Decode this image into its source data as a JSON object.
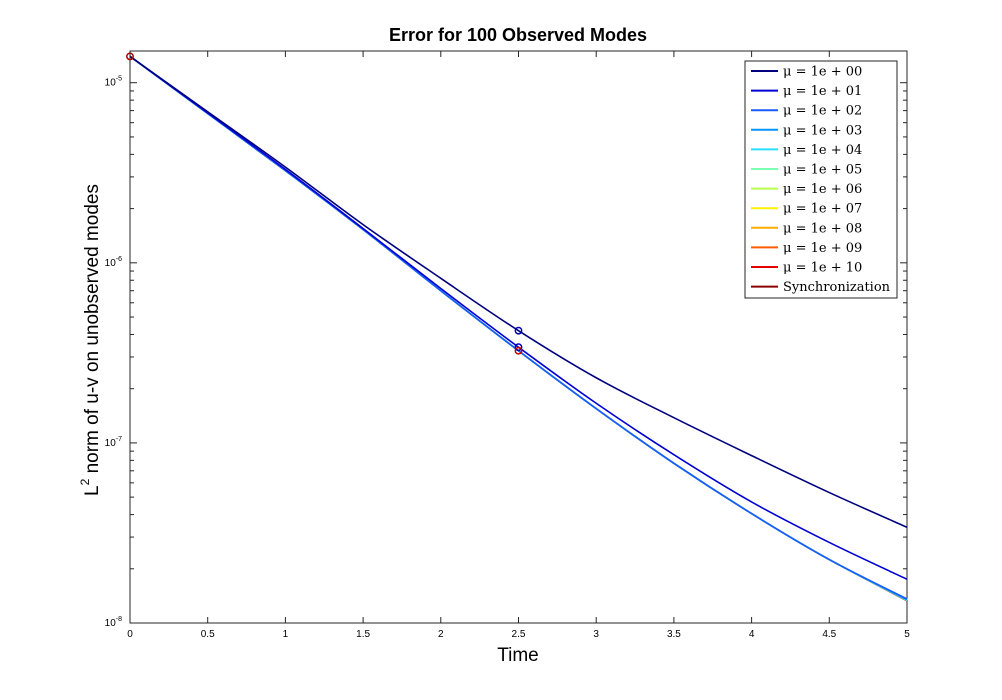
{
  "chart_data": {
    "type": "line",
    "title": "Error for 100 Observed Modes",
    "xlabel": "Time",
    "ylabel_base": "L",
    "ylabel_sup": "2",
    "ylabel_rest": " norm of u-v on unobserved modes",
    "xlim": [
      0,
      5
    ],
    "ylim": [
      1e-08,
      1.5e-05
    ],
    "yscale": "log",
    "xticks": [
      {
        "v": 0,
        "label": "0"
      },
      {
        "v": 0.5,
        "label": "0.5"
      },
      {
        "v": 1,
        "label": "1"
      },
      {
        "v": 1.5,
        "label": "1.5"
      },
      {
        "v": 2,
        "label": "2"
      },
      {
        "v": 2.5,
        "label": "2.5"
      },
      {
        "v": 3,
        "label": "3"
      },
      {
        "v": 3.5,
        "label": "3.5"
      },
      {
        "v": 4,
        "label": "4"
      },
      {
        "v": 4.5,
        "label": "4.5"
      },
      {
        "v": 5,
        "label": "5"
      }
    ],
    "yticks": [
      {
        "v": 1e-08,
        "base": "10",
        "exp": "-8"
      },
      {
        "v": 1e-07,
        "base": "10",
        "exp": "-7"
      },
      {
        "v": 1e-06,
        "base": "10",
        "exp": "-6"
      },
      {
        "v": 1e-05,
        "base": "10",
        "exp": "-5"
      }
    ],
    "legend_position": "top-right",
    "grid": false,
    "x": [
      0,
      0.5,
      1,
      1.5,
      2,
      2.5,
      3,
      3.5,
      4,
      4.5,
      5
    ],
    "series": [
      {
        "name": "μ = 1e + 00",
        "color": "#00007f",
        "values": [
          1.4e-05,
          6.9e-06,
          3.4e-06,
          1.63e-06,
          8.2e-07,
          4.2e-07,
          2.3e-07,
          1.38e-07,
          8.5e-08,
          5.3e-08,
          3.4e-08
        ]
      },
      {
        "name": "μ = 1e + 01",
        "color": "#0000d4",
        "values": [
          1.4e-05,
          6.8e-06,
          3.3e-06,
          1.55e-06,
          7.2e-07,
          3.4e-07,
          1.66e-07,
          8.6e-08,
          4.7e-08,
          2.8e-08,
          1.75e-08
        ]
      },
      {
        "name": "μ = 1e + 02",
        "color": "#1a5cff",
        "values": [
          1.4e-05,
          6.75e-06,
          3.25e-06,
          1.53e-06,
          7e-07,
          3.25e-07,
          1.55e-07,
          7.7e-08,
          4.05e-08,
          2.25e-08,
          1.36e-08
        ]
      },
      {
        "name": "μ = 1e + 03",
        "color": "#0094ff",
        "values": [
          1.4e-05,
          6.75e-06,
          3.25e-06,
          1.53e-06,
          7e-07,
          3.25e-07,
          1.55e-07,
          7.7e-08,
          4.05e-08,
          2.25e-08,
          1.35e-08
        ]
      },
      {
        "name": "μ = 1e + 04",
        "color": "#29e0ff",
        "values": [
          1.4e-05,
          6.75e-06,
          3.25e-06,
          1.53e-06,
          7e-07,
          3.25e-07,
          1.55e-07,
          7.7e-08,
          4.05e-08,
          2.25e-08,
          1.34e-08
        ]
      },
      {
        "name": "μ = 1e + 05",
        "color": "#7cffb0",
        "values": [
          1.4e-05,
          6.75e-06,
          3.25e-06,
          1.53e-06,
          7e-07,
          3.25e-07,
          1.55e-07,
          7.7e-08,
          4.05e-08,
          2.25e-08,
          1.34e-08
        ]
      },
      {
        "name": "μ = 1e + 06",
        "color": "#b8ff4a",
        "values": [
          1.4e-05,
          6.75e-06,
          3.25e-06,
          1.53e-06,
          7e-07,
          3.25e-07,
          1.55e-07,
          7.7e-08,
          4.05e-08,
          2.25e-08,
          1.34e-08
        ]
      },
      {
        "name": "μ = 1e + 07",
        "color": "#fff200",
        "values": [
          1.4e-05,
          6.75e-06,
          3.25e-06,
          1.53e-06,
          7e-07,
          3.25e-07,
          1.55e-07,
          7.7e-08,
          4.05e-08,
          2.25e-08,
          1.34e-08
        ]
      },
      {
        "name": "μ = 1e + 08",
        "color": "#ffae00",
        "values": [
          1.4e-05,
          6.75e-06,
          3.25e-06,
          1.53e-06,
          7e-07,
          3.25e-07,
          1.55e-07,
          7.7e-08,
          4.05e-08,
          2.25e-08,
          1.34e-08
        ]
      },
      {
        "name": "μ = 1e + 09",
        "color": "#ff5e00",
        "values": [
          1.4e-05,
          6.75e-06,
          3.25e-06,
          1.53e-06,
          7e-07,
          3.25e-07,
          1.55e-07,
          7.7e-08,
          4.05e-08,
          2.25e-08,
          1.34e-08
        ]
      },
      {
        "name": "μ = 1e + 10",
        "color": "#e60000",
        "values": [
          1.4e-05,
          6.75e-06,
          3.25e-06,
          1.53e-06,
          7e-07,
          3.25e-07,
          1.55e-07,
          7.7e-08,
          4.05e-08,
          2.25e-08,
          1.34e-08
        ]
      },
      {
        "name": "Synchronization",
        "color": "#8b0000",
        "values": [
          1.4e-05,
          6.75e-06,
          3.25e-06,
          1.53e-06,
          7e-07,
          3.25e-07,
          1.55e-07,
          7.7e-08,
          4.05e-08,
          2.25e-08,
          1.33e-08
        ]
      }
    ],
    "markers": [
      {
        "x": 0,
        "y": 1.4e-05,
        "color": "#b00000"
      },
      {
        "x": 2.5,
        "y": 4.2e-07,
        "color": "#0000b0"
      },
      {
        "x": 2.5,
        "y": 3.4e-07,
        "color": "#0000b0"
      },
      {
        "x": 2.5,
        "y": 3.25e-07,
        "color": "#c00000"
      }
    ]
  }
}
